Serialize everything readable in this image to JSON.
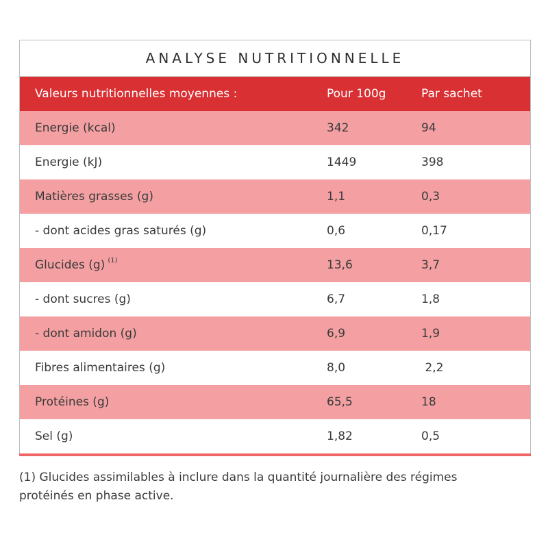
{
  "title": "ANALYSE NUTRITIONNELLE",
  "header": {
    "label": "Valeurs nutritionnelles moyennes :",
    "col1": "Pour 100g",
    "col2": "Par sachet"
  },
  "rows": [
    {
      "label": "Energie (kcal)",
      "per100": "342",
      "perSachet": "94",
      "sup": ""
    },
    {
      "label": "Energie (kJ)",
      "per100": "1449",
      "perSachet": "398",
      "sup": ""
    },
    {
      "label": "Matières grasses (g)",
      "per100": "1,1",
      "perSachet": "0,3",
      "sup": ""
    },
    {
      "label": "- dont acides gras saturés (g)",
      "per100": "0,6",
      "perSachet": "0,17",
      "sup": ""
    },
    {
      "label": "Glucides (g)",
      "per100": "13,6",
      "perSachet": "3,7",
      "sup": "(1)"
    },
    {
      "label": "- dont sucres (g)",
      "per100": "6,7",
      "perSachet": "1,8",
      "sup": ""
    },
    {
      "label": "- dont amidon (g)",
      "per100": "6,9",
      "perSachet": "1,9",
      "sup": ""
    },
    {
      "label": "Fibres alimentaires (g)",
      "per100": "8,0",
      "perSachet": " 2,2",
      "sup": ""
    },
    {
      "label": "Protéines (g)",
      "per100": "65,5",
      "perSachet": "18",
      "sup": ""
    },
    {
      "label": "Sel (g)",
      "per100": "1,82",
      "perSachet": "0,5",
      "sup": ""
    }
  ],
  "footnote": "(1) Glucides assimilables à inclure dans la quantité journalière des régimes protéinés en phase active.",
  "colors": {
    "header": "#d93033",
    "pink_row": "#f4a0a2",
    "bottom_bar": "#f26567"
  }
}
